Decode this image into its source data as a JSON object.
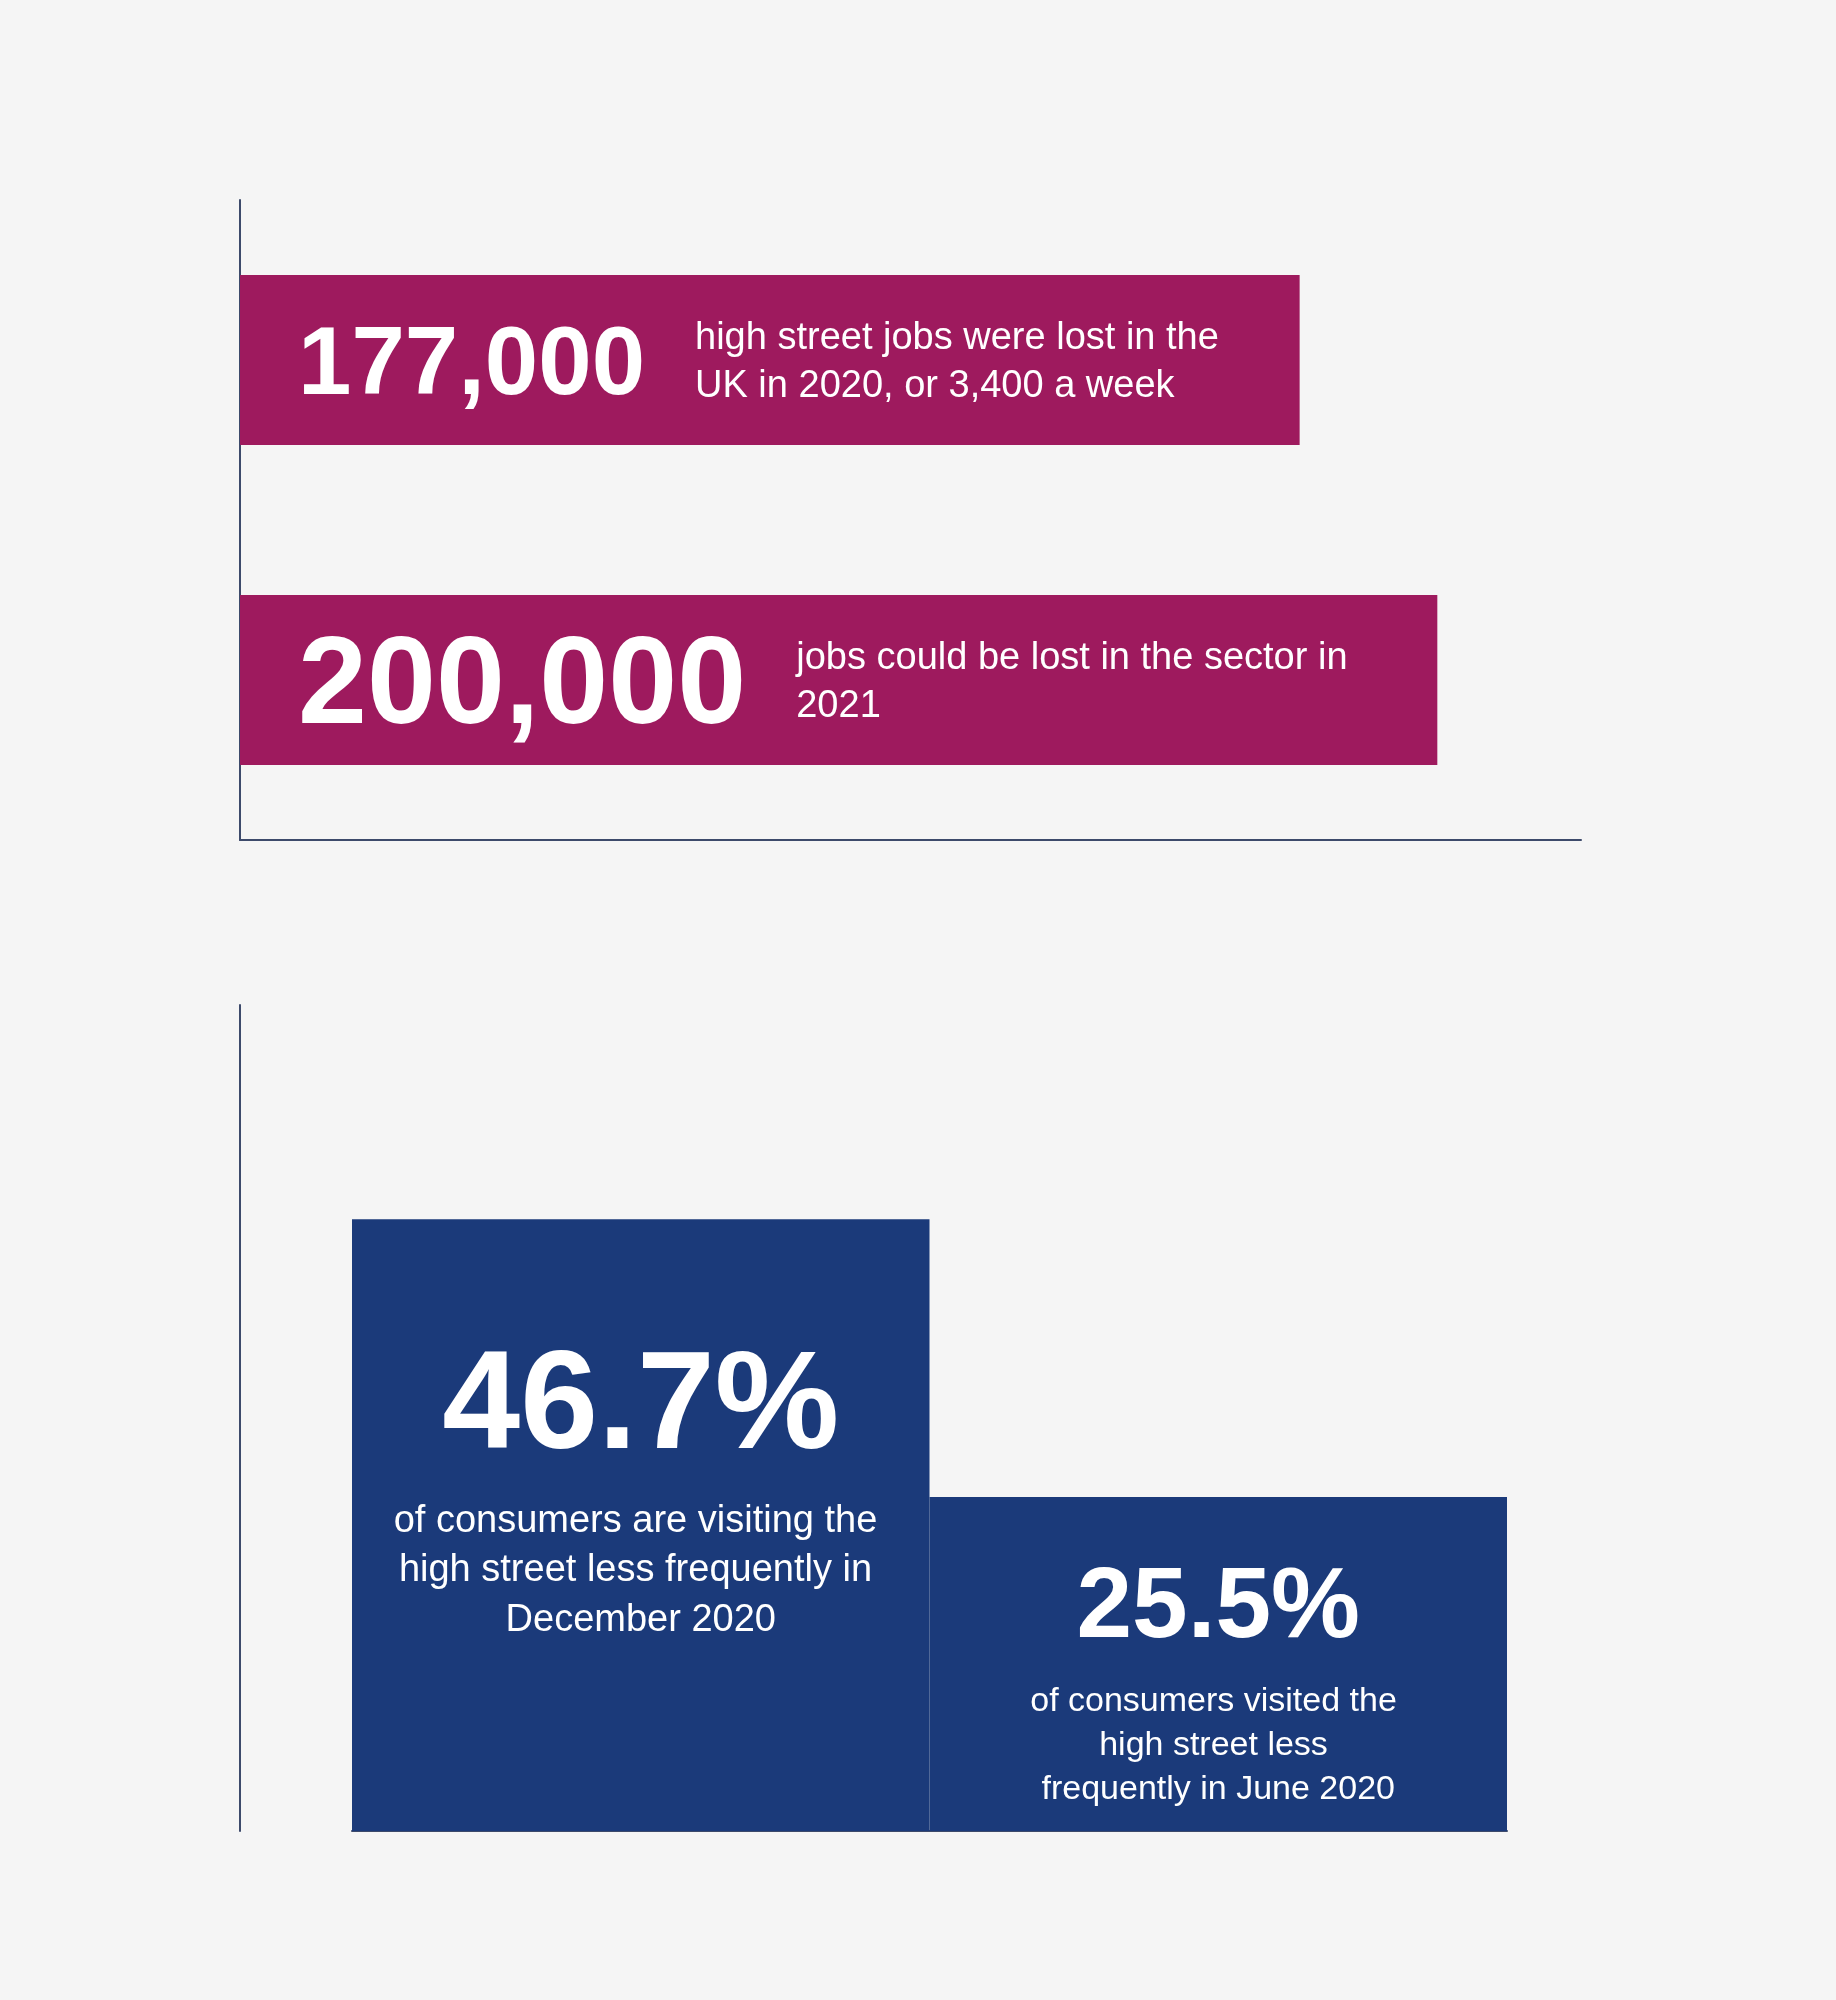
{
  "chart_data": [
    {
      "type": "bar",
      "orientation": "horizontal",
      "categories": [
        null,
        null
      ],
      "values": [
        177000,
        200000
      ],
      "color": "#9e1a5e",
      "value_labels": [
        "177,000",
        "200,000"
      ],
      "annotations": [
        "high street jobs were lost in the UK in 2020, or 3,400 a week",
        "jobs could be lost in the sector in 2021"
      ],
      "grid": false,
      "tick_labels": false
    },
    {
      "type": "bar",
      "categories": [
        null,
        null
      ],
      "values": [
        46.7,
        25.5
      ],
      "color": "#1b3a7a",
      "value_labels": [
        "46.7%",
        "25.5%"
      ],
      "annotations": [
        "of consumers are visiting the high street less frequently in December 2020",
        "of consumers visited the high street less frequently in June 2020"
      ],
      "grid": false,
      "tick_labels": false
    }
  ]
}
